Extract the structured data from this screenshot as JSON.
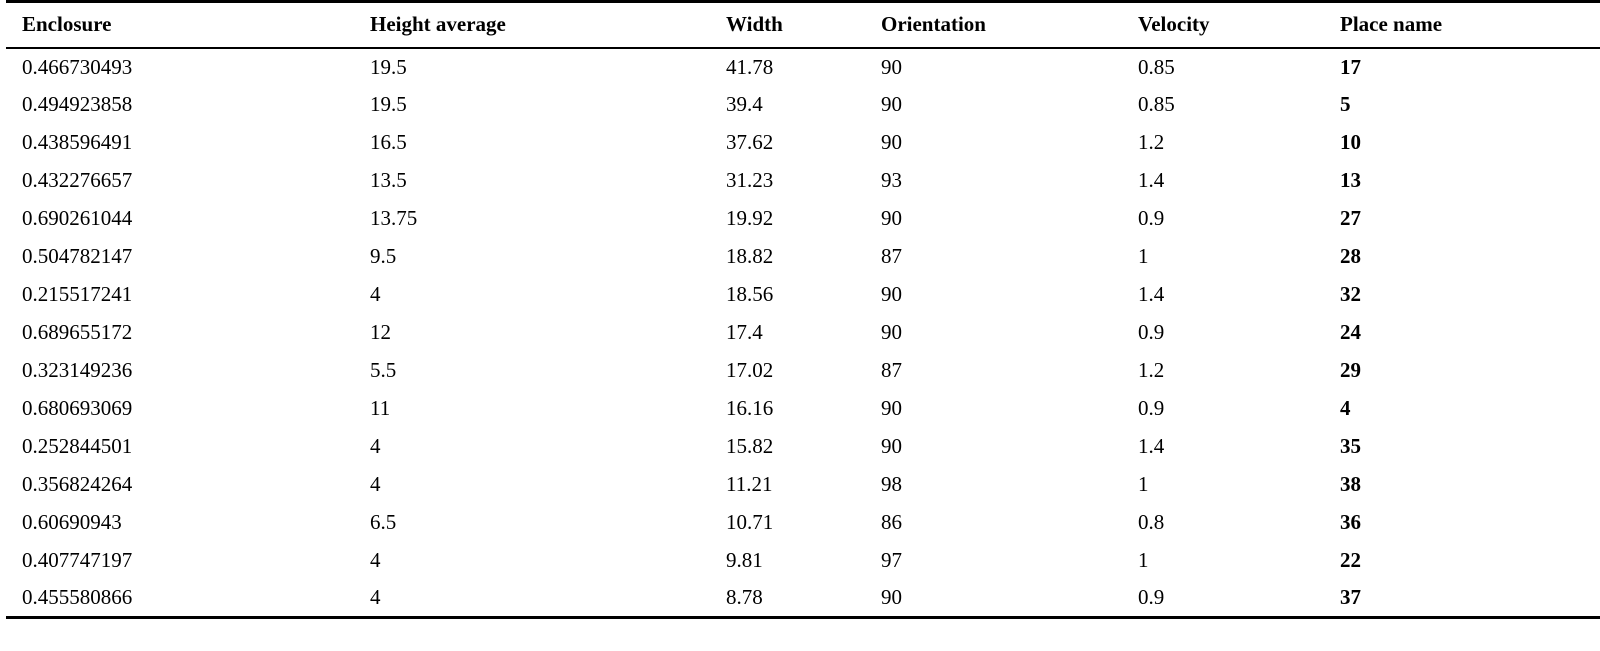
{
  "table": {
    "headers": [
      "Enclosure",
      "Height average",
      "Width",
      "Orientation",
      "Velocity",
      "Place name"
    ],
    "rows": [
      [
        "0.466730493",
        "19.5",
        "41.78",
        "90",
        "0.85",
        "17"
      ],
      [
        "0.494923858",
        "19.5",
        "39.4",
        "90",
        "0.85",
        "5"
      ],
      [
        "0.438596491",
        "16.5",
        "37.62",
        "90",
        "1.2",
        "10"
      ],
      [
        "0.432276657",
        "13.5",
        "31.23",
        "93",
        "1.4",
        "13"
      ],
      [
        "0.690261044",
        "13.75",
        "19.92",
        "90",
        "0.9",
        "27"
      ],
      [
        "0.504782147",
        "9.5",
        "18.82",
        "87",
        "1",
        "28"
      ],
      [
        "0.215517241",
        "4",
        "18.56",
        "90",
        "1.4",
        "32"
      ],
      [
        "0.689655172",
        "12",
        "17.4",
        "90",
        "0.9",
        "24"
      ],
      [
        "0.323149236",
        "5.5",
        "17.02",
        "87",
        "1.2",
        "29"
      ],
      [
        "0.680693069",
        "11",
        "16.16",
        "90",
        "0.9",
        "4"
      ],
      [
        "0.252844501",
        "4",
        "15.82",
        "90",
        "1.4",
        "35"
      ],
      [
        "0.356824264",
        "4",
        "11.21",
        "98",
        "1",
        "38"
      ],
      [
        "0.60690943",
        "6.5",
        "10.71",
        "86",
        "0.8",
        "36"
      ],
      [
        "0.407747197",
        "4",
        "9.81",
        "97",
        "1",
        "22"
      ],
      [
        "0.455580866",
        "4",
        "8.78",
        "90",
        "0.9",
        "37"
      ]
    ]
  }
}
